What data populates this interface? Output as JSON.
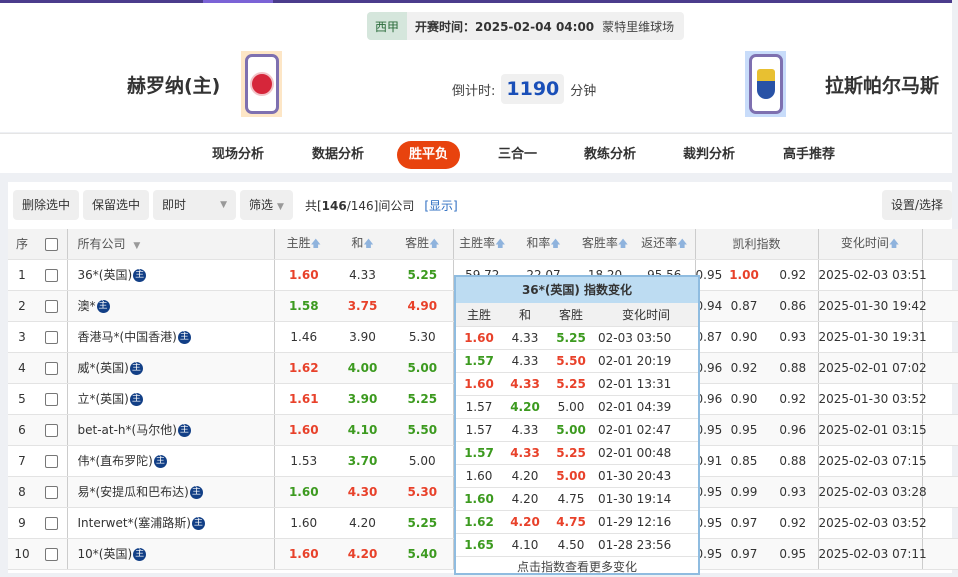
{
  "match": {
    "league": "西甲",
    "kickoff": "开赛时间：2025-02-04 04:00",
    "venue": "蒙特里维球场",
    "home": "赫罗纳(主)",
    "away": "拉斯帕尔马斯",
    "countdown_label": "倒计时:",
    "countdown_value": "1190",
    "countdown_unit": "分钟"
  },
  "nav": [
    "现场分析",
    "数据分析",
    "胜平负",
    "三合一",
    "教练分析",
    "裁判分析",
    "高手推荐"
  ],
  "nav_active": "胜平负",
  "toolbar": {
    "delete": "删除选中",
    "keep": "保留选中",
    "mode": "即时",
    "filter": "筛选",
    "count_prefix": "共[",
    "count_a": "146",
    "count_b": "/146]间公司",
    "show": "[显示]",
    "settings": "设置/选择"
  },
  "headers": {
    "idx": "序",
    "company": "所有公司",
    "home": "主胜",
    "draw": "和",
    "away": "客胜",
    "home_rate": "主胜率",
    "draw_rate": "和率",
    "away_rate": "客胜率",
    "return_rate": "返还率",
    "kelly": "凯利指数",
    "time": "变化时间"
  },
  "badge": "主",
  "colors": {
    "red": "#e8412a",
    "green": "#3c9a1f",
    "accent": "#e8430e"
  },
  "rows": [
    {
      "i": "1",
      "name": "36*(英国)",
      "h": [
        "1.60",
        "r"
      ],
      "d": [
        "4.33",
        ""
      ],
      "a": [
        "5.25",
        "g"
      ],
      "rates": [
        "59.72",
        "22.07",
        "18.20",
        "95.56"
      ],
      "k": [
        "0.95",
        "1.00",
        "0.92"
      ],
      "kr": 1,
      "t": "2025-02-03 03:51"
    },
    {
      "i": "2",
      "name": "澳*",
      "h": [
        "1.58",
        "g"
      ],
      "d": [
        "3.75",
        "r"
      ],
      "a": [
        "4.90",
        "r"
      ],
      "k": [
        "0.94",
        "0.87",
        "0.86"
      ],
      "t": "2025-01-30 19:42"
    },
    {
      "i": "3",
      "name": "香港马*(中国香港)",
      "h": [
        "1.46",
        ""
      ],
      "d": [
        "3.90",
        ""
      ],
      "a": [
        "5.30",
        ""
      ],
      "k": [
        "0.87",
        "0.90",
        "0.93"
      ],
      "t": "2025-01-30 19:31"
    },
    {
      "i": "4",
      "name": "威*(英国)",
      "h": [
        "1.62",
        "r"
      ],
      "d": [
        "4.00",
        "g"
      ],
      "a": [
        "5.00",
        "g"
      ],
      "k": [
        "0.96",
        "0.92",
        "0.88"
      ],
      "t": "2025-02-01 07:02"
    },
    {
      "i": "5",
      "name": "立*(英国)",
      "h": [
        "1.61",
        "r"
      ],
      "d": [
        "3.90",
        "g"
      ],
      "a": [
        "5.25",
        "g"
      ],
      "k": [
        "0.96",
        "0.90",
        "0.92"
      ],
      "t": "2025-01-30 03:52"
    },
    {
      "i": "6",
      "name": "bet-at-h*(马尔他)",
      "h": [
        "1.60",
        "r"
      ],
      "d": [
        "4.10",
        "g"
      ],
      "a": [
        "5.50",
        "g"
      ],
      "k": [
        "0.95",
        "0.95",
        "0.96"
      ],
      "t": "2025-02-01 03:15"
    },
    {
      "i": "7",
      "name": "伟*(直布罗陀)",
      "h": [
        "1.53",
        ""
      ],
      "d": [
        "3.70",
        "g"
      ],
      "a": [
        "5.00",
        ""
      ],
      "k": [
        "0.91",
        "0.85",
        "0.88"
      ],
      "t": "2025-02-03 07:15"
    },
    {
      "i": "8",
      "name": "易*(安提瓜和巴布达)",
      "h": [
        "1.60",
        "g"
      ],
      "d": [
        "4.30",
        "r"
      ],
      "a": [
        "5.30",
        "r"
      ],
      "k": [
        "0.95",
        "0.99",
        "0.93"
      ],
      "t": "2025-02-03 03:28"
    },
    {
      "i": "9",
      "name": "Interwet*(塞浦路斯)",
      "h": [
        "1.60",
        ""
      ],
      "d": [
        "4.20",
        ""
      ],
      "a": [
        "5.25",
        "g"
      ],
      "k": [
        "0.95",
        "0.97",
        "0.92"
      ],
      "t": "2025-02-03 03:52"
    },
    {
      "i": "10",
      "name": "10*(英国)",
      "h": [
        "1.60",
        "r"
      ],
      "d": [
        "4.20",
        "r"
      ],
      "a": [
        "5.40",
        "g"
      ],
      "k": [
        "0.95",
        "0.97",
        "0.95"
      ],
      "t": "2025-02-03 07:11"
    }
  ],
  "popup": {
    "title": "36*(英国) 指数变化",
    "cols": [
      "主胜",
      "和",
      "客胜",
      "变化时间"
    ],
    "footer": "点击指数查看更多变化",
    "rows": [
      [
        [
          "1.60",
          "r"
        ],
        [
          "4.33",
          ""
        ],
        [
          "5.25",
          "g"
        ],
        "02-03 03:50"
      ],
      [
        [
          "1.57",
          "g"
        ],
        [
          "4.33",
          ""
        ],
        [
          "5.50",
          "r"
        ],
        "02-01 20:19"
      ],
      [
        [
          "1.60",
          "r"
        ],
        [
          "4.33",
          "r"
        ],
        [
          "5.25",
          "r"
        ],
        "02-01 13:31"
      ],
      [
        [
          "1.57",
          ""
        ],
        [
          "4.20",
          "g"
        ],
        [
          "5.00",
          ""
        ],
        "02-01 04:39"
      ],
      [
        [
          "1.57",
          ""
        ],
        [
          "4.33",
          ""
        ],
        [
          "5.00",
          "g"
        ],
        "02-01 02:47"
      ],
      [
        [
          "1.57",
          "g"
        ],
        [
          "4.33",
          "r"
        ],
        [
          "5.25",
          "r"
        ],
        "02-01 00:48"
      ],
      [
        [
          "1.60",
          ""
        ],
        [
          "4.20",
          ""
        ],
        [
          "5.00",
          "r"
        ],
        "01-30 20:43"
      ],
      [
        [
          "1.60",
          "g"
        ],
        [
          "4.20",
          ""
        ],
        [
          "4.75",
          ""
        ],
        "01-30 19:14"
      ],
      [
        [
          "1.62",
          "g"
        ],
        [
          "4.20",
          "r"
        ],
        [
          "4.75",
          "r"
        ],
        "01-29 12:16"
      ],
      [
        [
          "1.65",
          "g"
        ],
        [
          "4.10",
          ""
        ],
        [
          "4.50",
          ""
        ],
        "01-28 23:56"
      ]
    ]
  }
}
